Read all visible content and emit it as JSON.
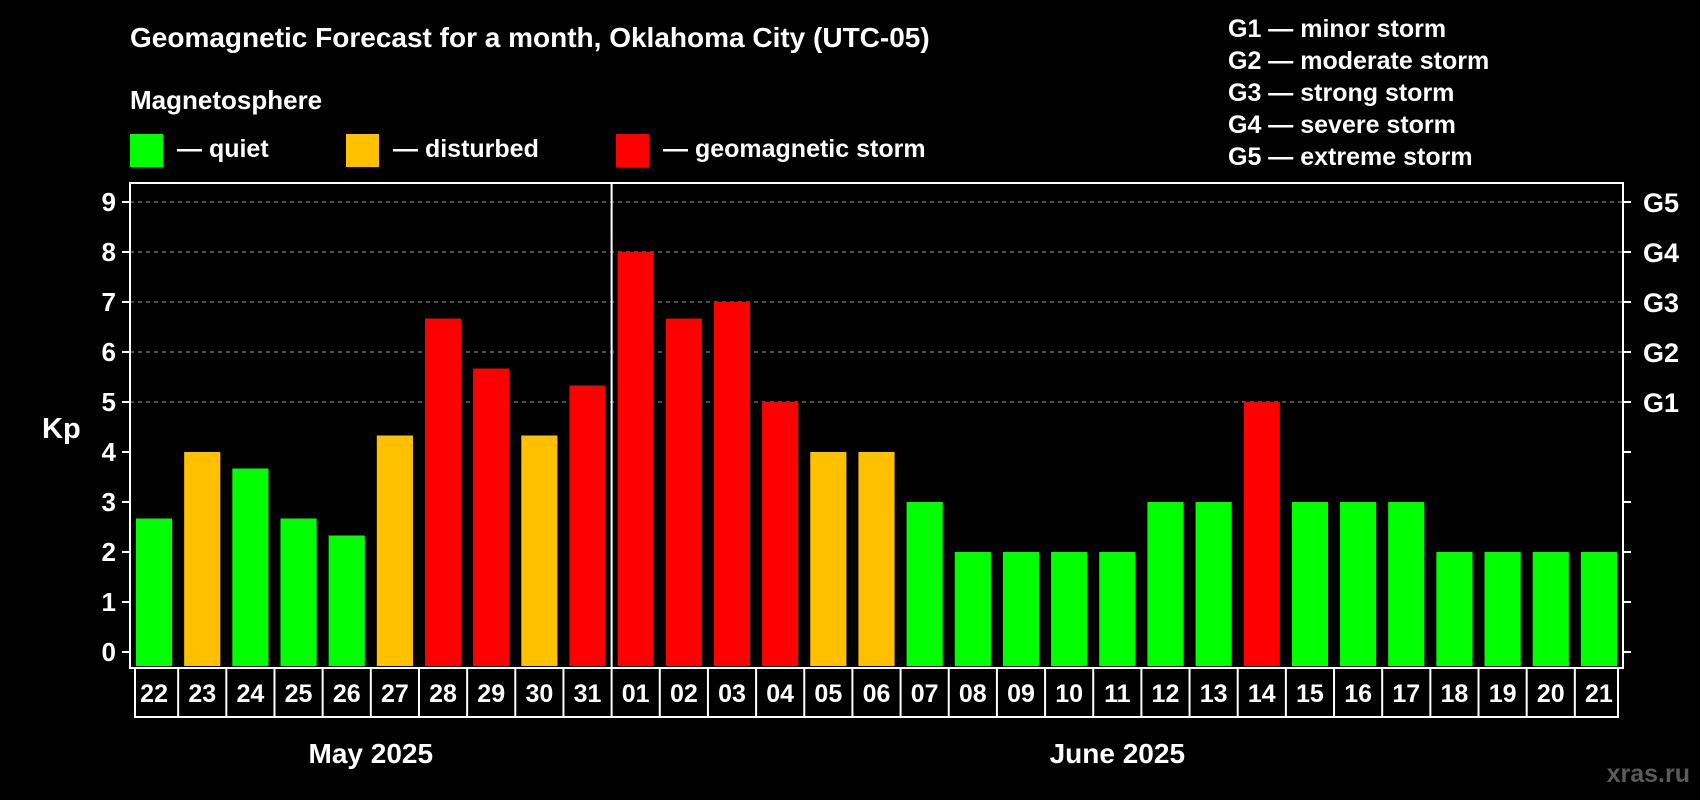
{
  "chart_data": {
    "type": "bar",
    "title": "Geomagnetic Forecast for a month, Oklahoma City (UTC-05)",
    "subtitle": "Magnetosphere",
    "ylabel": "Kp",
    "ylim": [
      0,
      9
    ],
    "yticks": [
      "0",
      "1",
      "2",
      "3",
      "4",
      "5",
      "6",
      "7",
      "8",
      "9"
    ],
    "right_axis_labels": [
      {
        "kp": 5,
        "label": "G1"
      },
      {
        "kp": 6,
        "label": "G2"
      },
      {
        "kp": 7,
        "label": "G3"
      },
      {
        "kp": 8,
        "label": "G4"
      },
      {
        "kp": 9,
        "label": "G5"
      }
    ],
    "grid": true,
    "categories": [
      "22",
      "23",
      "24",
      "25",
      "26",
      "27",
      "28",
      "29",
      "30",
      "31",
      "01",
      "02",
      "03",
      "04",
      "05",
      "06",
      "07",
      "08",
      "09",
      "10",
      "11",
      "12",
      "13",
      "14",
      "15",
      "16",
      "17",
      "18",
      "19",
      "20",
      "21"
    ],
    "values": [
      2.67,
      4.0,
      3.67,
      2.67,
      2.33,
      4.33,
      6.67,
      5.67,
      4.33,
      5.33,
      8.0,
      6.67,
      7.0,
      5.0,
      4.0,
      4.0,
      3.0,
      2.0,
      2.0,
      2.0,
      2.0,
      3.0,
      3.0,
      5.0,
      3.0,
      3.0,
      3.0,
      2.0,
      2.0,
      2.0,
      2.0
    ],
    "levels": [
      "quiet",
      "disturbed",
      "quiet",
      "quiet",
      "quiet",
      "disturbed",
      "storm",
      "storm",
      "disturbed",
      "storm",
      "storm",
      "storm",
      "storm",
      "storm",
      "disturbed",
      "disturbed",
      "quiet",
      "quiet",
      "quiet",
      "quiet",
      "quiet",
      "quiet",
      "quiet",
      "storm",
      "quiet",
      "quiet",
      "quiet",
      "quiet",
      "quiet",
      "quiet",
      "quiet"
    ],
    "months": [
      {
        "label": "May 2025",
        "first_index": 0,
        "last_index": 9
      },
      {
        "label": "June 2025",
        "first_index": 10,
        "last_index": 30
      }
    ],
    "level_colors": {
      "quiet": "#00ff00",
      "disturbed": "#ffc000",
      "storm": "#ff0000"
    },
    "legend": {
      "placement": "top",
      "items": [
        {
          "key": "quiet",
          "label": "— quiet"
        },
        {
          "key": "disturbed",
          "label": "— disturbed"
        },
        {
          "key": "storm",
          "label": "— geomagnetic storm"
        }
      ]
    },
    "scale_legend": [
      "G1 — minor storm",
      "G2 — moderate storm",
      "G3 — strong storm",
      "G4 — severe storm",
      "G5 — extreme storm"
    ]
  },
  "watermark": "xras.ru"
}
